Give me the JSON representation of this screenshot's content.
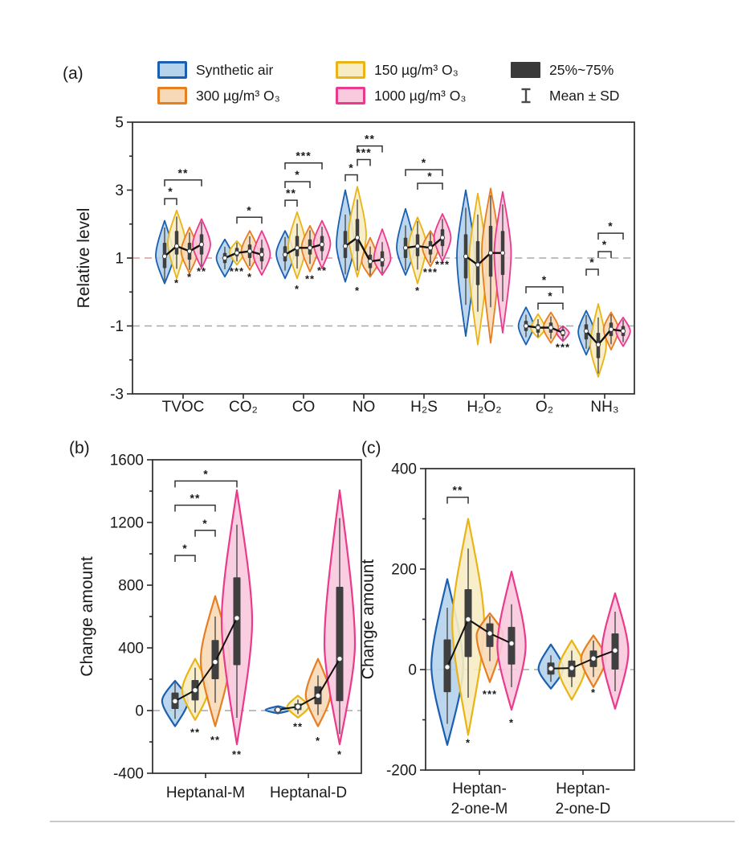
{
  "panels": {
    "a": {
      "label": "(a)"
    },
    "b": {
      "label": "(b)"
    },
    "c": {
      "label": "(c)"
    }
  },
  "legend": {
    "series": [
      {
        "label": "Synthetic air",
        "fill": "#b5d3eb",
        "stroke": "#1a5fb0"
      },
      {
        "label": "150 µg/m³ O₃",
        "fill": "#f8ecc4",
        "stroke": "#e9b416"
      },
      {
        "label": "300 µg/m³ O₃",
        "fill": "#f7d9b8",
        "stroke": "#e67e22"
      },
      {
        "label": "1000 µg/m³ O₃",
        "fill": "#f9c9de",
        "stroke": "#e93a8c"
      }
    ],
    "stats": [
      {
        "label": "25%~75%",
        "swatch": "#3a3a3a"
      },
      {
        "label": "Mean ± SD",
        "icon": "mean-sd-errorbar",
        "color": "#4a4a4a"
      }
    ]
  },
  "colors": {
    "axis": "#2a2a2a",
    "text": "#1a1a1a",
    "ref_gray": "#a8a8a8",
    "ref_pink": "#dc9c9c",
    "box": "#3f3f3f",
    "mean_line": "#111111",
    "dot_fill": "#ffffff",
    "dot_edge": "#444444"
  },
  "chart_data": [
    {
      "type": "violin",
      "panel": "a",
      "ylabel": "Relative level",
      "ylim": [
        -3,
        5
      ],
      "ytick_step": 2,
      "yminor_step": 1,
      "legend_position": "top",
      "grid": false,
      "series_names": [
        "Synthetic air",
        "150 µg/m³ O₃",
        "300 µg/m³ O₃",
        "1000 µg/m³ O₃"
      ],
      "reference_lines": [
        {
          "y": 1,
          "color_key": "ref_pink",
          "x_frac": [
            0,
            0.57
          ]
        },
        {
          "y": 1,
          "color_key": "ref_gray",
          "x_frac": [
            0.57,
            1
          ]
        },
        {
          "y": -1,
          "color_key": "ref_gray",
          "x_frac": [
            0,
            1
          ]
        }
      ],
      "groups": [
        {
          "category": "TVOC",
          "violins": [
            {
              "lo": 0.25,
              "q1": 0.7,
              "mean": 1.05,
              "q3": 1.45,
              "hi": 2.1,
              "w": 1
            },
            {
              "lo": 0.4,
              "q1": 1.1,
              "mean": 1.35,
              "q3": 1.8,
              "hi": 2.4,
              "w": 1
            },
            {
              "lo": 0.55,
              "q1": 0.95,
              "mean": 1.2,
              "q3": 1.45,
              "hi": 1.9,
              "w": 0.95
            },
            {
              "lo": 0.7,
              "q1": 1.1,
              "mean": 1.4,
              "q3": 1.7,
              "hi": 2.15,
              "w": 1
            }
          ],
          "brackets": [
            {
              "from": 0,
              "to": 1,
              "y": 2.75,
              "stars": "*"
            },
            {
              "from": 0,
              "to": 3,
              "y": 3.3,
              "stars": "**"
            }
          ],
          "stars_below": [
            {
              "series": 1,
              "y": 0.28,
              "stars": "*"
            },
            {
              "series": 2,
              "y": 0.45,
              "stars": "*"
            },
            {
              "series": 3,
              "y": 0.62,
              "stars": "**"
            }
          ]
        },
        {
          "category": "CO₂",
          "violins": [
            {
              "lo": 0.45,
              "q1": 0.85,
              "mean": 1.0,
              "q3": 1.15,
              "hi": 1.55,
              "w": 0.95
            },
            {
              "lo": 0.8,
              "q1": 1.05,
              "mean": 1.15,
              "q3": 1.3,
              "hi": 1.5,
              "w": 0.85
            },
            {
              "lo": 0.65,
              "q1": 1.0,
              "mean": 1.2,
              "q3": 1.4,
              "hi": 1.8,
              "w": 0.95
            },
            {
              "lo": 0.5,
              "q1": 0.9,
              "mean": 1.1,
              "q3": 1.3,
              "hi": 1.8,
              "w": 0.95
            }
          ],
          "brackets": [
            {
              "from": 1,
              "to": 3,
              "y": 2.2,
              "stars": "*"
            }
          ],
          "stars_below": [
            {
              "series": 1,
              "y": 0.62,
              "stars": "***"
            },
            {
              "series": 2,
              "y": 0.45,
              "stars": "*"
            }
          ]
        },
        {
          "category": "CO",
          "violins": [
            {
              "lo": 0.4,
              "q1": 0.9,
              "mean": 1.1,
              "q3": 1.35,
              "hi": 1.8,
              "w": 1
            },
            {
              "lo": 0.4,
              "q1": 1.05,
              "mean": 1.3,
              "q3": 1.65,
              "hi": 2.35,
              "w": 1
            },
            {
              "lo": 0.6,
              "q1": 1.1,
              "mean": 1.3,
              "q3": 1.55,
              "hi": 1.95,
              "w": 0.95
            },
            {
              "lo": 0.7,
              "q1": 1.2,
              "mean": 1.4,
              "q3": 1.65,
              "hi": 2.1,
              "w": 0.95
            }
          ],
          "brackets": [
            {
              "from": 0,
              "to": 1,
              "y": 2.7,
              "stars": "**"
            },
            {
              "from": 0,
              "to": 2,
              "y": 3.25,
              "stars": "*"
            },
            {
              "from": 0,
              "to": 3,
              "y": 3.8,
              "stars": "***"
            }
          ],
          "stars_below": [
            {
              "series": 1,
              "y": 0.1,
              "stars": "*"
            },
            {
              "series": 2,
              "y": 0.4,
              "stars": "**"
            },
            {
              "series": 3,
              "y": 0.65,
              "stars": "**"
            }
          ]
        },
        {
          "category": "NO",
          "violins": [
            {
              "lo": 0.3,
              "q1": 1.0,
              "mean": 1.35,
              "q3": 1.8,
              "hi": 3.0,
              "w": 1
            },
            {
              "lo": 0.45,
              "q1": 1.2,
              "mean": 1.6,
              "q3": 2.15,
              "hi": 3.1,
              "w": 1
            },
            {
              "lo": 0.45,
              "q1": 0.7,
              "mean": 0.9,
              "q3": 1.1,
              "hi": 1.6,
              "w": 0.95
            },
            {
              "lo": 0.5,
              "q1": 0.75,
              "mean": 0.95,
              "q3": 1.2,
              "hi": 1.85,
              "w": 0.95
            }
          ],
          "brackets": [
            {
              "from": 0,
              "to": 1,
              "y": 3.45,
              "stars": "*"
            },
            {
              "from": 1,
              "to": 2,
              "y": 3.9,
              "stars": "***"
            },
            {
              "from": 1,
              "to": 3,
              "y": 4.3,
              "stars": "**"
            }
          ],
          "stars_below": [
            {
              "series": 1,
              "y": 0.05,
              "stars": "*"
            }
          ]
        },
        {
          "category": "H₂S",
          "violins": [
            {
              "lo": 0.5,
              "q1": 1.0,
              "mean": 1.3,
              "q3": 1.6,
              "hi": 2.45,
              "w": 1
            },
            {
              "lo": 0.25,
              "q1": 1.05,
              "mean": 1.35,
              "q3": 1.7,
              "hi": 2.2,
              "w": 1
            },
            {
              "lo": 0.75,
              "q1": 1.1,
              "mean": 1.3,
              "q3": 1.5,
              "hi": 1.8,
              "w": 0.9
            },
            {
              "lo": 0.9,
              "q1": 1.35,
              "mean": 1.6,
              "q3": 1.85,
              "hi": 2.3,
              "w": 0.95
            }
          ],
          "brackets": [
            {
              "from": 1,
              "to": 3,
              "y": 3.2,
              "stars": "*"
            },
            {
              "from": 0,
              "to": 3,
              "y": 3.6,
              "stars": "*"
            }
          ],
          "stars_below": [
            {
              "series": 1,
              "y": 0.05,
              "stars": "*"
            },
            {
              "series": 2,
              "y": 0.6,
              "stars": "***"
            },
            {
              "series": 3,
              "y": 0.82,
              "stars": "***"
            }
          ]
        },
        {
          "category": "H₂O₂",
          "violins": [
            {
              "lo": -1.3,
              "q1": 0.4,
              "mean": 1.05,
              "q3": 1.7,
              "hi": 3.0,
              "w": 1
            },
            {
              "lo": -1.55,
              "q1": 0.2,
              "mean": 0.8,
              "q3": 1.5,
              "hi": 2.9,
              "w": 1
            },
            {
              "lo": -1.5,
              "q1": 0.45,
              "mean": 1.15,
              "q3": 1.95,
              "hi": 3.05,
              "w": 1
            },
            {
              "lo": -1.2,
              "q1": 0.5,
              "mean": 1.15,
              "q3": 1.8,
              "hi": 2.95,
              "w": 0.95
            }
          ],
          "brackets": [],
          "stars_below": []
        },
        {
          "category": "O₂",
          "violins": [
            {
              "lo": -1.55,
              "q1": -1.15,
              "mean": -1.0,
              "q3": -0.85,
              "hi": -0.45,
              "w": 0.85
            },
            {
              "lo": -1.35,
              "q1": -1.2,
              "mean": -1.05,
              "q3": -0.95,
              "hi": -0.65,
              "w": 0.8
            },
            {
              "lo": -1.5,
              "q1": -1.2,
              "mean": -1.05,
              "q3": -0.9,
              "hi": -0.6,
              "w": 0.85
            },
            {
              "lo": -1.45,
              "q1": -1.3,
              "mean": -1.2,
              "q3": -1.1,
              "hi": -1.0,
              "w": 0.7
            }
          ],
          "brackets": [
            {
              "from": 1,
              "to": 3,
              "y": -0.33,
              "stars": "*"
            },
            {
              "from": 0,
              "to": 3,
              "y": 0.15,
              "stars": "*"
            }
          ],
          "stars_below": [
            {
              "series": 3,
              "y": -1.62,
              "stars": "***"
            }
          ]
        },
        {
          "category": "NH₃",
          "violins": [
            {
              "lo": -1.85,
              "q1": -1.4,
              "mean": -1.15,
              "q3": -0.95,
              "hi": -0.55,
              "w": 0.9
            },
            {
              "lo": -2.5,
              "q1": -1.95,
              "mean": -1.55,
              "q3": -1.2,
              "hi": -0.35,
              "w": 0.9
            },
            {
              "lo": -1.7,
              "q1": -1.3,
              "mean": -1.1,
              "q3": -0.9,
              "hi": -0.6,
              "w": 0.85
            },
            {
              "lo": -1.6,
              "q1": -1.3,
              "mean": -1.15,
              "q3": -1.0,
              "hi": -0.75,
              "w": 0.8
            }
          ],
          "brackets": [
            {
              "from": 0,
              "to": 1,
              "y": 0.67,
              "stars": "*"
            },
            {
              "from": 1,
              "to": 2,
              "y": 1.19,
              "stars": "*"
            },
            {
              "from": 1,
              "to": 3,
              "y": 1.73,
              "stars": "*"
            }
          ],
          "stars_below": []
        }
      ]
    },
    {
      "type": "violin",
      "panel": "b",
      "ylabel": "Change amount",
      "ylim": [
        -400,
        1600
      ],
      "ytick_step": 400,
      "yminor_step": 200,
      "grid": false,
      "series_names": [
        "Synthetic air",
        "150 µg/m³ O₃",
        "300 µg/m³ O₃",
        "1000 µg/m³ O₃"
      ],
      "reference_lines": [
        {
          "y": 0,
          "color_key": "ref_gray",
          "x_frac": [
            0,
            1
          ]
        }
      ],
      "groups": [
        {
          "category": "Heptanal-M",
          "violins": [
            {
              "lo": -100,
              "q1": 10,
              "mean": 60,
              "q3": 115,
              "hi": 190,
              "w": 0.85
            },
            {
              "lo": -60,
              "q1": 65,
              "mean": 130,
              "q3": 195,
              "hi": 330,
              "w": 0.85
            },
            {
              "lo": -100,
              "q1": 200,
              "mean": 310,
              "q3": 450,
              "hi": 730,
              "w": 0.95
            },
            {
              "lo": -215,
              "q1": 290,
              "mean": 590,
              "q3": 850,
              "hi": 1405,
              "w": 1
            }
          ],
          "brackets": [
            {
              "from": 0,
              "to": 1,
              "y": 990,
              "stars": "*"
            },
            {
              "from": 1,
              "to": 2,
              "y": 1150,
              "stars": "*"
            },
            {
              "from": 0,
              "to": 2,
              "y": 1310,
              "stars": "**"
            },
            {
              "from": 0,
              "to": 3,
              "y": 1465,
              "stars": "*"
            }
          ],
          "stars_below": [
            {
              "series": 1,
              "y": -135,
              "stars": "**"
            },
            {
              "series": 2,
              "y": -185,
              "stars": "**"
            },
            {
              "series": 3,
              "y": -278,
              "stars": "**"
            }
          ]
        },
        {
          "category": "Heptanal-D",
          "violins": [
            {
              "lo": -18,
              "q1": -6,
              "mean": 5,
              "q3": 14,
              "hi": 28,
              "w": 0.8
            },
            {
              "lo": -45,
              "q1": 3,
              "mean": 25,
              "q3": 45,
              "hi": 95,
              "w": 0.7
            },
            {
              "lo": -100,
              "q1": 40,
              "mean": 95,
              "q3": 155,
              "hi": 330,
              "w": 0.8
            },
            {
              "lo": -215,
              "q1": 60,
              "mean": 330,
              "q3": 790,
              "hi": 1405,
              "w": 1
            }
          ],
          "brackets": [],
          "stars_below": [
            {
              "series": 1,
              "y": -100,
              "stars": "**"
            },
            {
              "series": 2,
              "y": -190,
              "stars": "*"
            },
            {
              "series": 3,
              "y": -278,
              "stars": "*"
            }
          ]
        }
      ]
    },
    {
      "type": "violin",
      "panel": "c",
      "ylabel": "Change amount",
      "ylim": [
        -200,
        400
      ],
      "ytick_step": 200,
      "yminor_step": 100,
      "grid": false,
      "series_names": [
        "Synthetic air",
        "150 µg/m³ O₃",
        "300 µg/m³ O₃",
        "1000 µg/m³ O₃"
      ],
      "reference_lines": [
        {
          "y": 0,
          "color_key": "ref_gray",
          "x_frac": [
            0,
            1
          ]
        }
      ],
      "groups": [
        {
          "category": [
            "Heptan-",
            "2-one-M"
          ],
          "violins": [
            {
              "lo": -150,
              "q1": -45,
              "mean": 5,
              "q3": 60,
              "hi": 180,
              "w": 0.9
            },
            {
              "lo": -130,
              "q1": 25,
              "mean": 100,
              "q3": 160,
              "hi": 300,
              "w": 0.9
            },
            {
              "lo": -25,
              "q1": 45,
              "mean": 72,
              "q3": 92,
              "hi": 112,
              "w": 0.75
            },
            {
              "lo": -80,
              "q1": 10,
              "mean": 52,
              "q3": 85,
              "hi": 195,
              "w": 0.8
            }
          ],
          "brackets": [
            {
              "from": 0,
              "to": 1,
              "y": 343,
              "stars": "**"
            }
          ],
          "stars_below": [
            {
              "series": 1,
              "y": -145,
              "stars": "*"
            },
            {
              "series": 2,
              "y": -48,
              "stars": "***"
            },
            {
              "series": 3,
              "y": -105,
              "stars": "*"
            }
          ]
        },
        {
          "category": [
            "Heptan-",
            "2-one-D"
          ],
          "violins": [
            {
              "lo": -38,
              "q1": -10,
              "mean": 2,
              "q3": 14,
              "hi": 50,
              "w": 0.7
            },
            {
              "lo": -60,
              "q1": -15,
              "mean": 3,
              "q3": 18,
              "hi": 58,
              "w": 0.75
            },
            {
              "lo": -35,
              "q1": 5,
              "mean": 22,
              "q3": 38,
              "hi": 68,
              "w": 0.7
            },
            {
              "lo": -78,
              "q1": 0,
              "mean": 38,
              "q3": 72,
              "hi": 152,
              "w": 0.75
            }
          ],
          "brackets": [],
          "stars_below": [
            {
              "series": 2,
              "y": -45,
              "stars": "*"
            }
          ]
        }
      ]
    }
  ]
}
